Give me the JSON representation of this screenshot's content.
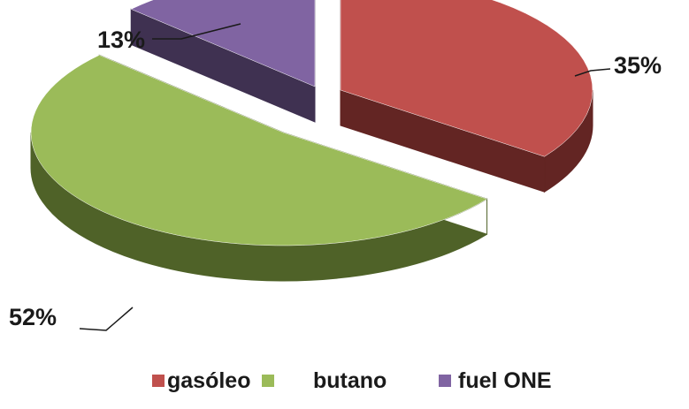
{
  "chart_data": {
    "type": "pie",
    "variant": "3d-exploded",
    "title": "",
    "slices": [
      {
        "name": "gasóleo",
        "value": 35,
        "label": "35%",
        "color": "#c0504d",
        "side_color": "#632523"
      },
      {
        "name": "butano",
        "value": 52,
        "label": "52%",
        "color": "#9bbb59",
        "side_color": "#4f6228"
      },
      {
        "name": "fuel ONE",
        "value": 13,
        "label": "13%",
        "color": "#8064a2",
        "side_color": "#3f3151"
      }
    ],
    "legend": {
      "position": "bottom",
      "entries": [
        "gasóleo",
        "butano",
        "fuel ONE"
      ]
    }
  }
}
